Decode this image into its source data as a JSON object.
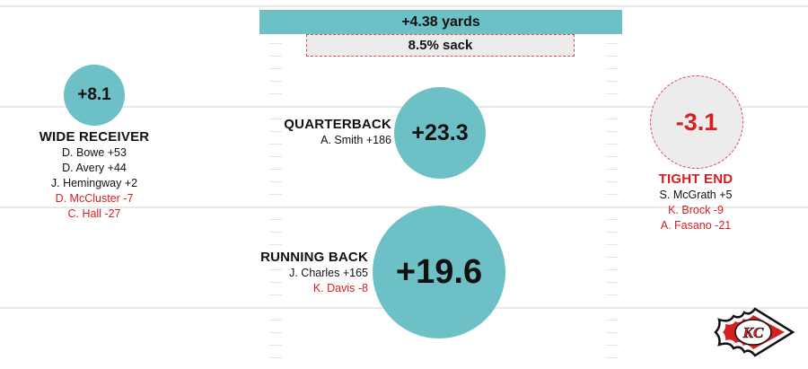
{
  "summary": {
    "yards": "+4.38 yards",
    "sack": "8.5% sack"
  },
  "wide_receiver": {
    "value": "+8.1",
    "title": "WIDE RECEIVER",
    "players": [
      {
        "text": "D. Bowe +53",
        "positive": true
      },
      {
        "text": "D. Avery +44",
        "positive": true
      },
      {
        "text": "J. Hemingway +2",
        "positive": true
      },
      {
        "text": "D. McCluster -7",
        "positive": false
      },
      {
        "text": "C. Hall -27",
        "positive": false
      }
    ]
  },
  "quarterback": {
    "value": "+23.3",
    "title": "QUARTERBACK",
    "players": [
      {
        "text": "A. Smith +186",
        "positive": true
      }
    ]
  },
  "running_back": {
    "value": "+19.6",
    "title": "RUNNING BACK",
    "players": [
      {
        "text": "J. Charles +165",
        "positive": true
      },
      {
        "text": "K. Davis -8",
        "positive": false
      }
    ]
  },
  "tight_end": {
    "value": "-3.1",
    "title": "TIGHT END",
    "players": [
      {
        "text": "S. McGrath +5",
        "positive": true
      },
      {
        "text": "K. Brock -9",
        "positive": false
      },
      {
        "text": "A. Fasano -21",
        "positive": false
      }
    ]
  },
  "logo": {
    "text": "KC",
    "colors": {
      "red": "#d62020",
      "white": "#ffffff"
    }
  },
  "colors": {
    "teal": "#6cc0c6",
    "negative": "#d62020",
    "neutral": "#ececec"
  }
}
